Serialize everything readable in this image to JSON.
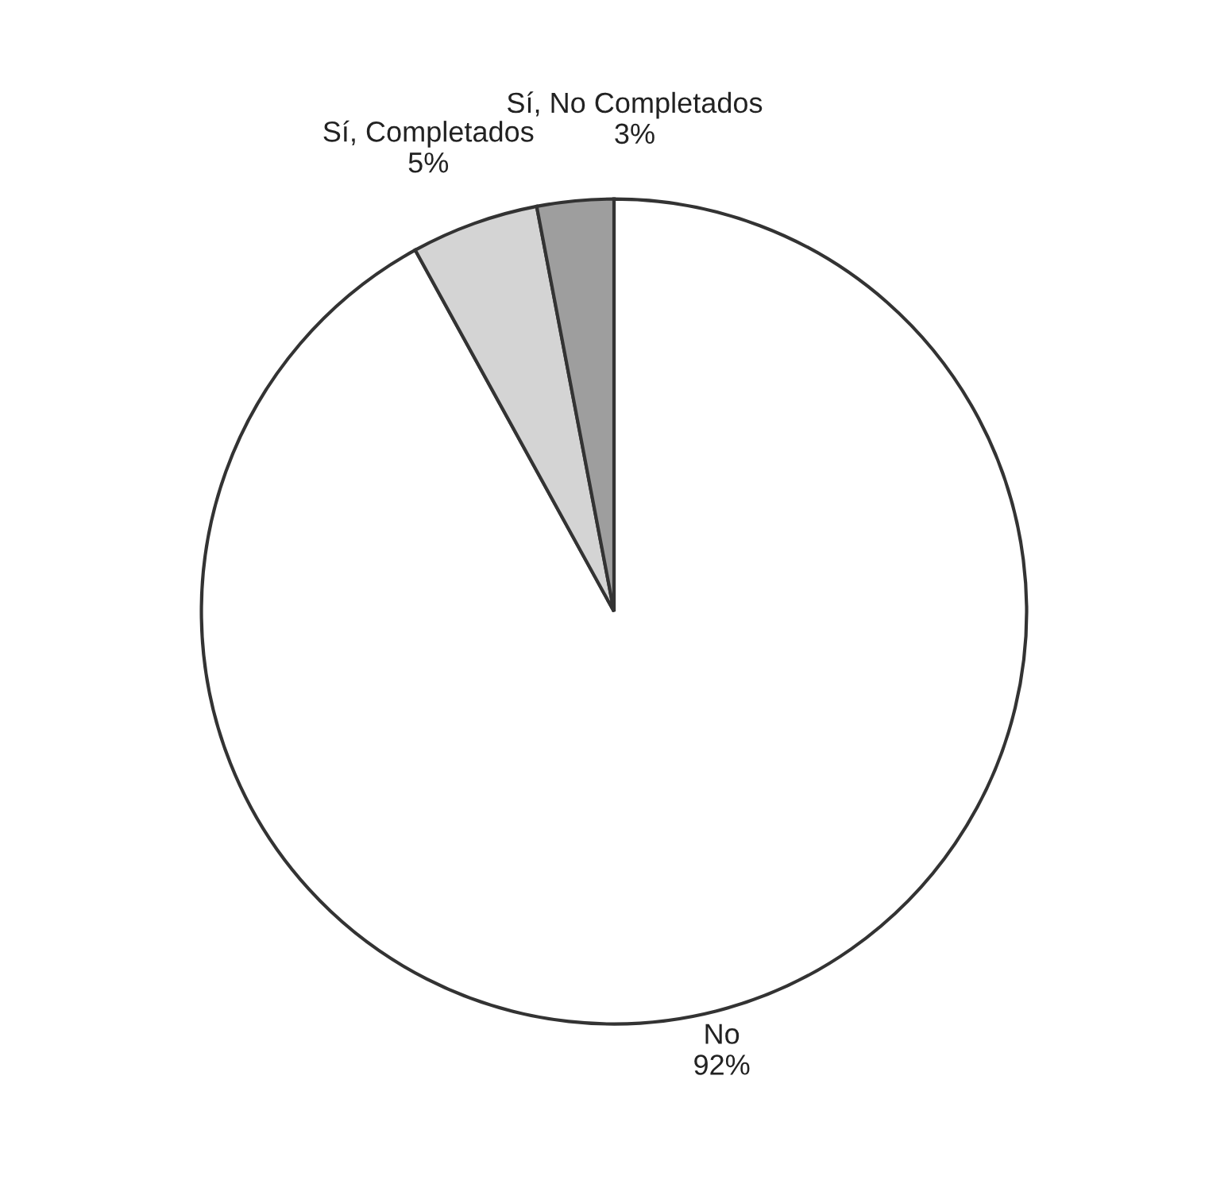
{
  "chart_data": {
    "type": "pie",
    "categories": [
      "No",
      "Sí, Completados",
      "Sí, No Completados"
    ],
    "values": [
      92,
      5,
      3
    ],
    "colors": [
      "#ffffff",
      "#d4d4d4",
      "#9e9e9e"
    ],
    "value_labels": [
      "92%",
      "5%",
      "3%"
    ]
  }
}
